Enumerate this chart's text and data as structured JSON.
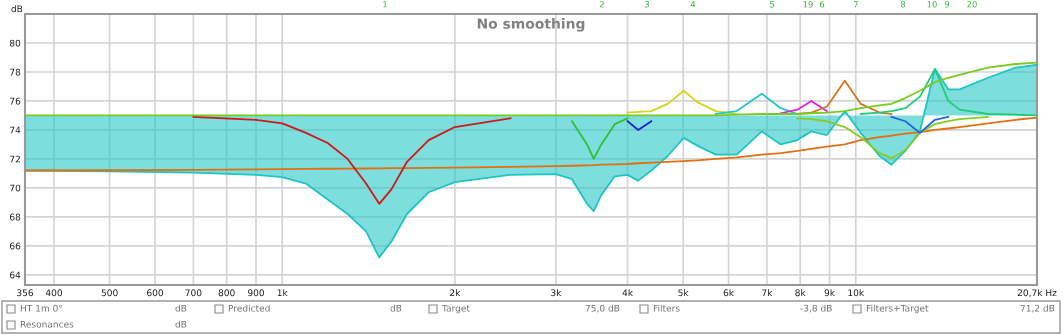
{
  "chart_data": {
    "type": "line",
    "title": "No smoothing",
    "ylabel": "dB",
    "log": "x",
    "grid": true,
    "xlim": [
      356,
      20700
    ],
    "ylim": [
      63.3,
      82
    ],
    "xticks": [
      356,
      400,
      500,
      600,
      700,
      800,
      900,
      {
        "value": 1000,
        "label": "1k"
      },
      {
        "value": 2000,
        "label": "2k"
      },
      {
        "value": 3000,
        "label": "3k"
      },
      {
        "value": 4000,
        "label": "4k"
      },
      {
        "value": 5000,
        "label": "5k"
      },
      {
        "value": 6000,
        "label": "6k"
      },
      {
        "value": 7000,
        "label": "7k"
      },
      {
        "value": 8000,
        "label": "8k"
      },
      {
        "value": 9000,
        "label": "9k"
      },
      {
        "value": 10000,
        "label": "10k"
      },
      {
        "value": 20700,
        "label": "20,7k Hz"
      }
    ],
    "yticks": [
      64,
      66,
      68,
      70,
      72,
      74,
      76,
      78,
      80
    ],
    "x": [
      356,
      500,
      700,
      900,
      1000,
      1100,
      1200,
      1300,
      1400,
      1476,
      1550,
      1650,
      1800,
      2000,
      2500,
      3000,
      3200,
      3400,
      3492,
      3600,
      3800,
      4000,
      4175,
      4400,
      4700,
      5012,
      5300,
      5700,
      6200,
      6856,
      7400,
      7912,
      8365,
      8900,
      9570,
      10200,
      11000,
      11540,
      12200,
      12940,
      13740,
      14500,
      15170,
      17000,
      19000,
      20700
    ],
    "series": [
      {
        "color": "#20c4c4",
        "values": [
          71.2,
          71.15,
          71.05,
          70.9,
          70.75,
          70.3,
          69.2,
          68.2,
          67.0,
          65.2,
          66.3,
          68.2,
          69.7,
          70.4,
          70.9,
          70.95,
          70.6,
          68.9,
          68.4,
          69.5,
          70.8,
          70.9,
          70.5,
          71.2,
          72.2,
          73.45,
          72.9,
          72.3,
          72.3,
          73.9,
          73.0,
          73.3,
          73.9,
          73.65,
          75.3,
          73.8,
          72.2,
          71.6,
          72.55,
          73.9,
          78.2,
          76.8,
          76.8,
          77.6,
          78.3,
          78.5
        ],
        "lower": [
          71.2,
          71.15,
          71.05,
          70.9,
          70.75,
          70.3,
          69.2,
          68.2,
          67.0,
          65.2,
          66.3,
          68.2,
          69.7,
          70.4,
          70.9,
          70.95,
          70.6,
          68.9,
          68.4,
          69.5,
          70.8,
          70.9,
          70.5,
          71.2,
          72.2,
          73.45,
          72.9,
          72.3,
          72.3,
          73.9,
          73.0,
          73.3,
          73.9,
          73.65,
          75.3,
          73.8,
          72.2,
          71.6,
          72.55,
          73.9,
          78.2,
          76.8,
          76.8,
          77.6,
          78.3,
          78.5
        ],
        "upper": [
          75,
          75,
          75,
          75,
          75,
          75,
          75,
          75,
          75,
          75,
          75,
          75,
          75,
          75,
          75,
          75,
          75,
          75,
          75,
          75,
          75,
          75,
          75,
          75,
          75,
          75,
          75,
          75,
          75,
          75,
          75,
          75,
          75,
          75,
          75,
          75,
          75,
          75,
          75,
          75,
          75,
          75,
          75,
          75,
          75,
          75
        ]
      },
      {
        "color": "#e07010",
        "values": [
          71.2,
          71.22,
          71.25,
          71.28,
          71.3,
          71.31,
          71.32,
          71.33,
          71.34,
          71.35,
          71.36,
          71.37,
          71.38,
          71.4,
          71.45,
          71.5,
          71.53,
          71.56,
          71.57,
          71.6,
          71.62,
          71.65,
          71.7,
          71.75,
          71.8,
          71.85,
          71.9,
          72.0,
          72.1,
          72.3,
          72.4,
          72.55,
          72.7,
          72.85,
          73.0,
          73.3,
          73.5,
          73.6,
          73.75,
          73.85,
          74.0,
          74.1,
          74.2,
          74.45,
          74.7,
          74.85
        ]
      },
      {
        "color": "#cc1a1a",
        "values": [
          null,
          null,
          74.9,
          74.7,
          74.45,
          73.8,
          73.1,
          72.0,
          70.3,
          68.9,
          69.9,
          71.8,
          73.3,
          74.2,
          74.8,
          null,
          null,
          null,
          null,
          null,
          null,
          null,
          null,
          null,
          null,
          null,
          null,
          null,
          null,
          null,
          null,
          null,
          null,
          null,
          null,
          null,
          null,
          null,
          null,
          null,
          null,
          null,
          null,
          null,
          null,
          null
        ]
      },
      {
        "color": "#30c030",
        "values": [
          null,
          null,
          null,
          null,
          null,
          null,
          null,
          null,
          null,
          null,
          null,
          null,
          null,
          null,
          null,
          null,
          74.6,
          73.0,
          72.0,
          73.0,
          74.4,
          74.8,
          null,
          null,
          null,
          null,
          null,
          null,
          null,
          null,
          null,
          null,
          null,
          null,
          null,
          null,
          null,
          null,
          null,
          null,
          null,
          null,
          null,
          null,
          null,
          null
        ]
      },
      {
        "color": "#2020cc",
        "values": [
          null,
          null,
          null,
          null,
          null,
          null,
          null,
          null,
          null,
          null,
          null,
          null,
          null,
          null,
          null,
          null,
          null,
          null,
          null,
          null,
          null,
          74.6,
          74.0,
          74.6,
          null,
          null,
          null,
          null,
          null,
          null,
          null,
          null,
          null,
          null,
          null,
          null,
          null,
          null,
          null,
          null,
          null,
          null,
          null,
          null,
          null,
          null
        ]
      },
      {
        "color": "#d4d420",
        "values": [
          null,
          null,
          null,
          null,
          null,
          null,
          null,
          null,
          null,
          null,
          null,
          null,
          null,
          null,
          null,
          null,
          null,
          null,
          null,
          null,
          null,
          75.2,
          75.25,
          75.3,
          75.8,
          76.7,
          75.9,
          75.3,
          75.1,
          null,
          null,
          null,
          null,
          null,
          null,
          null,
          null,
          null,
          null,
          null,
          null,
          null,
          null,
          null,
          null,
          null
        ]
      },
      {
        "color": "#20c8c8",
        "values": [
          null,
          null,
          null,
          null,
          null,
          null,
          null,
          null,
          null,
          null,
          null,
          null,
          null,
          null,
          null,
          null,
          null,
          null,
          null,
          null,
          null,
          null,
          null,
          null,
          null,
          null,
          null,
          75.1,
          75.3,
          76.5,
          75.5,
          75.1,
          null,
          null,
          null,
          null,
          null,
          null,
          null,
          null,
          null,
          null,
          null,
          null,
          null,
          null
        ]
      },
      {
        "color": "#dd22dd",
        "values": [
          null,
          null,
          null,
          null,
          null,
          null,
          null,
          null,
          null,
          null,
          null,
          null,
          null,
          null,
          null,
          null,
          null,
          null,
          null,
          null,
          null,
          null,
          null,
          null,
          null,
          null,
          null,
          null,
          null,
          null,
          75.15,
          75.4,
          76.0,
          75.3,
          null,
          null,
          null,
          null,
          null,
          null,
          null,
          null,
          null,
          null,
          null,
          null
        ]
      },
      {
        "color": "#d07820",
        "values": [
          null,
          null,
          null,
          null,
          null,
          null,
          null,
          null,
          null,
          null,
          null,
          null,
          null,
          null,
          null,
          null,
          null,
          null,
          null,
          null,
          null,
          null,
          null,
          null,
          null,
          null,
          null,
          null,
          null,
          null,
          null,
          75.1,
          75.2,
          75.6,
          77.4,
          75.8,
          75.2,
          75.1,
          null,
          null,
          null,
          null,
          null,
          null,
          null,
          null
        ]
      },
      {
        "color": "#88cc22",
        "values": [
          null,
          null,
          null,
          null,
          null,
          null,
          null,
          null,
          null,
          null,
          null,
          null,
          null,
          null,
          null,
          null,
          null,
          null,
          null,
          null,
          null,
          null,
          null,
          null,
          null,
          null,
          null,
          null,
          null,
          null,
          null,
          74.8,
          74.75,
          74.6,
          74.2,
          73.5,
          72.4,
          72.05,
          72.6,
          73.8,
          74.4,
          74.6,
          74.75,
          74.9,
          null,
          null
        ]
      },
      {
        "color": "#2266dd",
        "values": [
          null,
          null,
          null,
          null,
          null,
          null,
          null,
          null,
          null,
          null,
          null,
          null,
          null,
          null,
          null,
          null,
          null,
          null,
          null,
          null,
          null,
          null,
          null,
          null,
          null,
          null,
          null,
          null,
          null,
          null,
          null,
          null,
          null,
          null,
          null,
          null,
          null,
          74.9,
          74.6,
          73.8,
          74.7,
          74.9,
          null,
          null,
          null,
          null
        ]
      },
      {
        "color": "#22cc77",
        "values": [
          null,
          null,
          null,
          null,
          null,
          null,
          null,
          null,
          null,
          null,
          null,
          null,
          null,
          null,
          null,
          null,
          null,
          null,
          null,
          null,
          null,
          null,
          null,
          null,
          null,
          null,
          null,
          null,
          null,
          null,
          null,
          null,
          null,
          null,
          null,
          75.1,
          75.2,
          75.3,
          75.5,
          76.3,
          78.2,
          76.0,
          75.4,
          75.1,
          75.05,
          75
        ]
      },
      {
        "color": "#77cc22",
        "values": [
          75,
          75,
          75,
          75,
          75,
          75,
          75,
          75,
          75,
          75,
          75,
          75,
          75,
          75,
          75,
          75,
          75,
          75,
          75,
          75,
          75,
          75,
          75,
          75,
          75,
          75,
          75,
          75,
          75.05,
          75.1,
          75.1,
          75.1,
          75.15,
          75.2,
          75.3,
          75.5,
          75.7,
          75.8,
          76.2,
          76.7,
          77.3,
          77.6,
          77.8,
          78.3,
          78.55,
          78.65
        ]
      }
    ],
    "annotations": [
      "1",
      "2",
      "3",
      "4",
      "5",
      "19",
      "6",
      "7",
      "8",
      "10",
      "9",
      "20",
      "HT 1m 0°",
      "dB",
      "Predicted",
      "dB",
      "Target",
      "75,0 dB",
      "Filters",
      "-3,8 dB",
      "Filters+Target",
      "71,2 dB",
      "Resonances",
      "dB"
    ]
  }
}
